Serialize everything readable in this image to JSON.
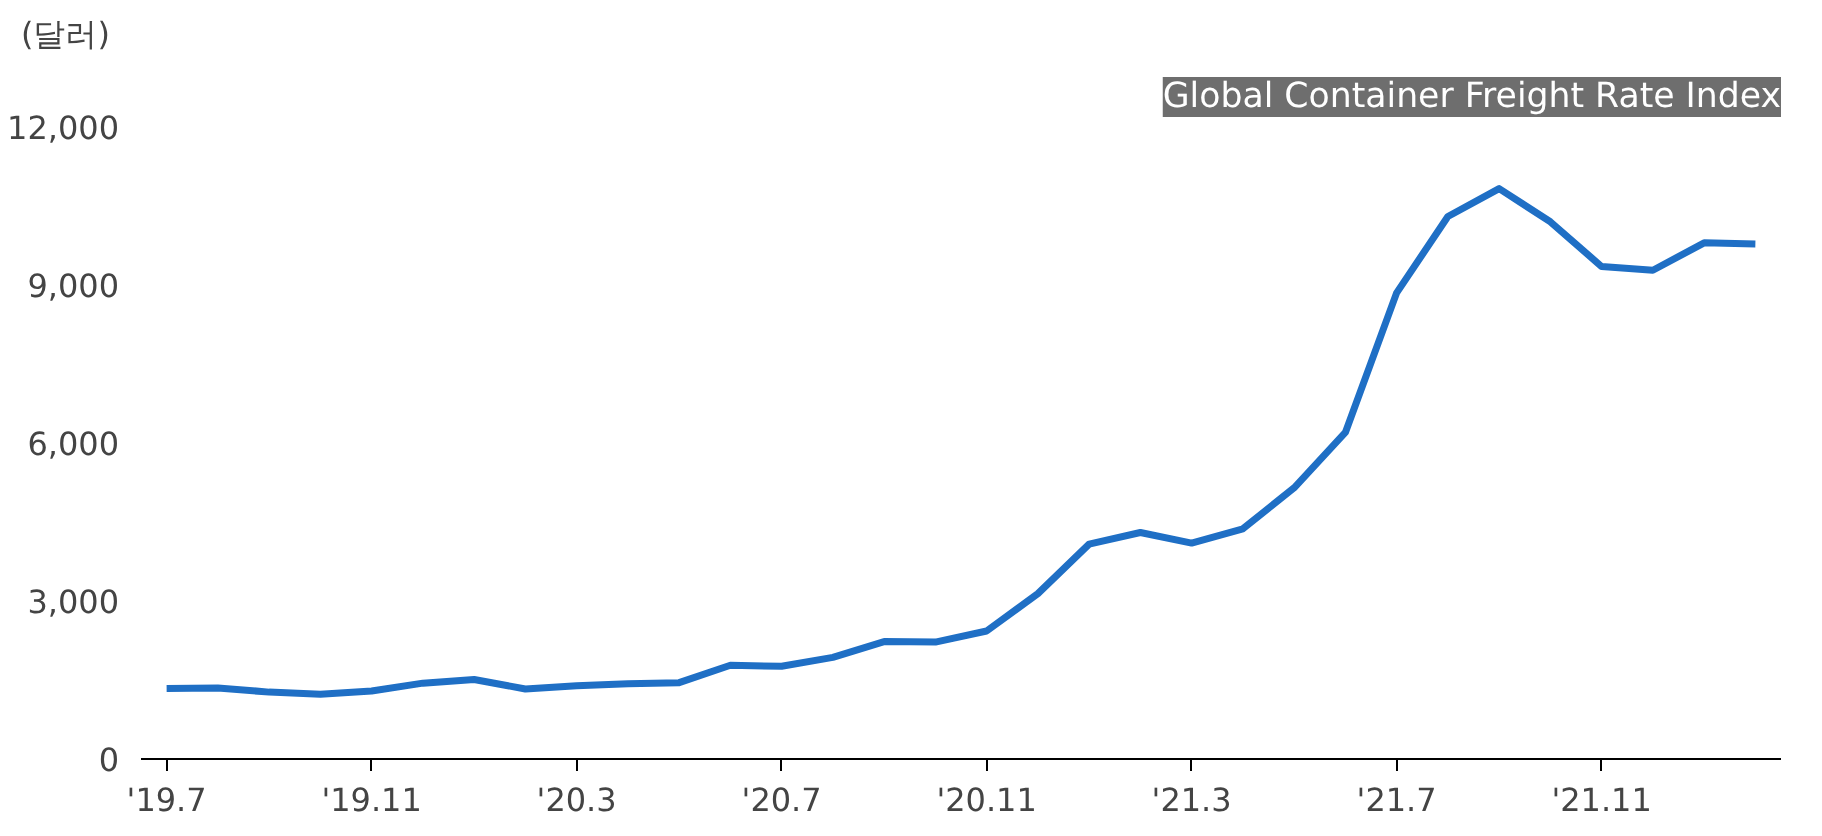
{
  "chart_data": {
    "type": "line",
    "title": "Global Container Freight Rate Index",
    "ylabel": "(달러)",
    "categories": [
      "'19.7",
      null,
      null,
      null,
      "'19.11",
      null,
      null,
      null,
      "'20.3",
      null,
      null,
      null,
      "'20.7",
      null,
      null,
      null,
      "'20.11",
      null,
      null,
      null,
      "'21.3",
      null,
      null,
      null,
      "'21.7",
      null,
      null,
      null,
      "'21.11",
      null,
      null,
      null
    ],
    "series": [
      {
        "color": "#1f6fc5",
        "values": [
          1340,
          1350,
          1270,
          1230,
          1290,
          1440,
          1510,
          1330,
          1390,
          1430,
          1450,
          1780,
          1760,
          1930,
          2230,
          2220,
          2430,
          3140,
          4080,
          4300,
          4100,
          4370,
          5150,
          6200,
          8850,
          10300,
          10830,
          10200,
          9350,
          9280,
          9800,
          9780
        ]
      }
    ],
    "ylim": [
      0,
      12000
    ],
    "yticks": [
      0,
      {
        "value": 3000,
        "label": "3,000"
      },
      {
        "value": 6000,
        "label": "6,000"
      },
      {
        "value": 9000,
        "label": "9,000"
      },
      {
        "value": 12000,
        "label": "12,000"
      }
    ],
    "grid": false,
    "line_style": "solid",
    "marker": "none"
  }
}
